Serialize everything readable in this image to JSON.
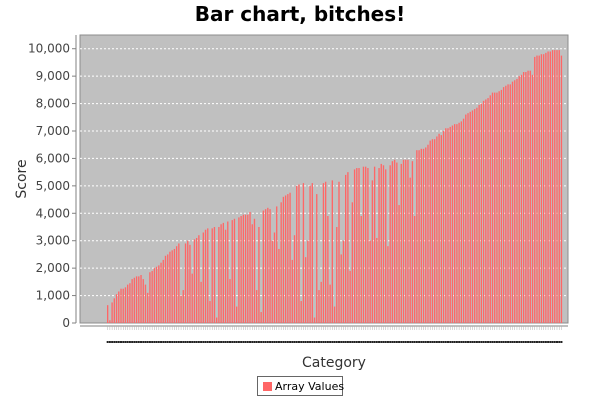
{
  "chart_data": {
    "type": "bar",
    "title": "Bar chart, bitches!",
    "xlabel": "Category",
    "ylabel": "Score",
    "ylim": [
      0,
      10500
    ],
    "yticks": [
      "0",
      "1,000",
      "2,000",
      "3,000",
      "4,000",
      "5,000",
      "6,000",
      "7,000",
      "8,000",
      "9,000",
      "10,000"
    ],
    "grid": true,
    "legend_position": "bottom",
    "plot_background": "#c0c0c0",
    "bar_color": "#ff6666",
    "series": [
      {
        "name": "Array Values",
        "values": [
          650,
          100,
          750,
          900,
          1050,
          1150,
          1250,
          1250,
          1300,
          1400,
          1450,
          1600,
          1650,
          1700,
          1700,
          1750,
          1600,
          1400,
          1100,
          1850,
          1900,
          2000,
          2050,
          2100,
          2200,
          2300,
          2450,
          2500,
          2600,
          2650,
          2700,
          2800,
          2900,
          1000,
          1200,
          2900,
          3000,
          2850,
          1800,
          3050,
          3100,
          3200,
          1500,
          3300,
          3400,
          3450,
          800,
          3450,
          3500,
          200,
          3500,
          3600,
          3650,
          3400,
          3700,
          1600,
          3750,
          3800,
          600,
          3850,
          3900,
          3950,
          3950,
          3950,
          4050,
          3600,
          3800,
          1200,
          3500,
          400,
          4100,
          4150,
          4200,
          4150,
          3000,
          3300,
          4250,
          2700,
          4400,
          4600,
          4650,
          4700,
          4750,
          2300,
          3200,
          5000,
          5050,
          800,
          5100,
          2400,
          3000,
          5000,
          5100,
          200,
          4700,
          1200,
          1500,
          5100,
          5150,
          3900,
          1400,
          5200,
          600,
          3500,
          5150,
          2500,
          3000,
          5400,
          5500,
          1900,
          4400,
          5600,
          5650,
          5650,
          3900,
          5700,
          5700,
          5650,
          3000,
          5200,
          5700,
          3100,
          5650,
          5800,
          5750,
          5600,
          2800,
          5750,
          5900,
          5950,
          5850,
          4300,
          5800,
          5950,
          5950,
          5950,
          5300,
          5900,
          3900,
          6300,
          6300,
          6350,
          6350,
          6400,
          6500,
          6650,
          6700,
          6700,
          6800,
          6900,
          6850,
          7000,
          7100,
          7100,
          7150,
          7200,
          7250,
          7250,
          7300,
          7350,
          7450,
          7600,
          7650,
          7700,
          7750,
          7800,
          7850,
          7950,
          8000,
          8100,
          8150,
          8200,
          8300,
          8400,
          8400,
          8400,
          8450,
          8500,
          8600,
          8650,
          8700,
          8700,
          8800,
          8850,
          8900,
          9000,
          9050,
          9150,
          9150,
          9200,
          9200,
          9050,
          9700,
          9750,
          9750,
          9800,
          9800,
          9850,
          9900,
          9900,
          9950,
          9950,
          9950,
          9950,
          9750
        ]
      }
    ]
  }
}
